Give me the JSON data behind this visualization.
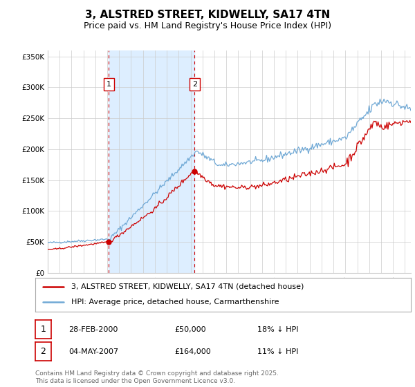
{
  "title": "3, ALSTRED STREET, KIDWELLY, SA17 4TN",
  "subtitle": "Price paid vs. HM Land Registry's House Price Index (HPI)",
  "ylabel_ticks": [
    "£0",
    "£50K",
    "£100K",
    "£150K",
    "£200K",
    "£250K",
    "£300K",
    "£350K"
  ],
  "ytick_values": [
    0,
    50000,
    100000,
    150000,
    200000,
    250000,
    300000,
    350000
  ],
  "ylim": [
    0,
    360000
  ],
  "xlim_start": 1995.0,
  "xlim_end": 2025.5,
  "purchase1_x": 2000.14,
  "purchase1_y": 50000,
  "purchase1_label": "1",
  "purchase2_x": 2007.34,
  "purchase2_y": 164000,
  "purchase2_label": "2",
  "red_line_color": "#cc0000",
  "blue_line_color": "#6fa8d5",
  "shade_color": "#ddeeff",
  "vline_color": "#cc0000",
  "grid_color": "#cccccc",
  "background_color": "#ffffff",
  "legend_line1": "3, ALSTRED STREET, KIDWELLY, SA17 4TN (detached house)",
  "legend_line2": "HPI: Average price, detached house, Carmarthenshire",
  "annotation1_date": "28-FEB-2000",
  "annotation1_price": "£50,000",
  "annotation1_hpi": "18% ↓ HPI",
  "annotation2_date": "04-MAY-2007",
  "annotation2_price": "£164,000",
  "annotation2_hpi": "11% ↓ HPI",
  "footer": "Contains HM Land Registry data © Crown copyright and database right 2025.\nThis data is licensed under the Open Government Licence v3.0.",
  "title_fontsize": 11,
  "subtitle_fontsize": 9,
  "tick_fontsize": 7.5,
  "legend_fontsize": 8,
  "annot_fontsize": 8,
  "footer_fontsize": 6.5
}
